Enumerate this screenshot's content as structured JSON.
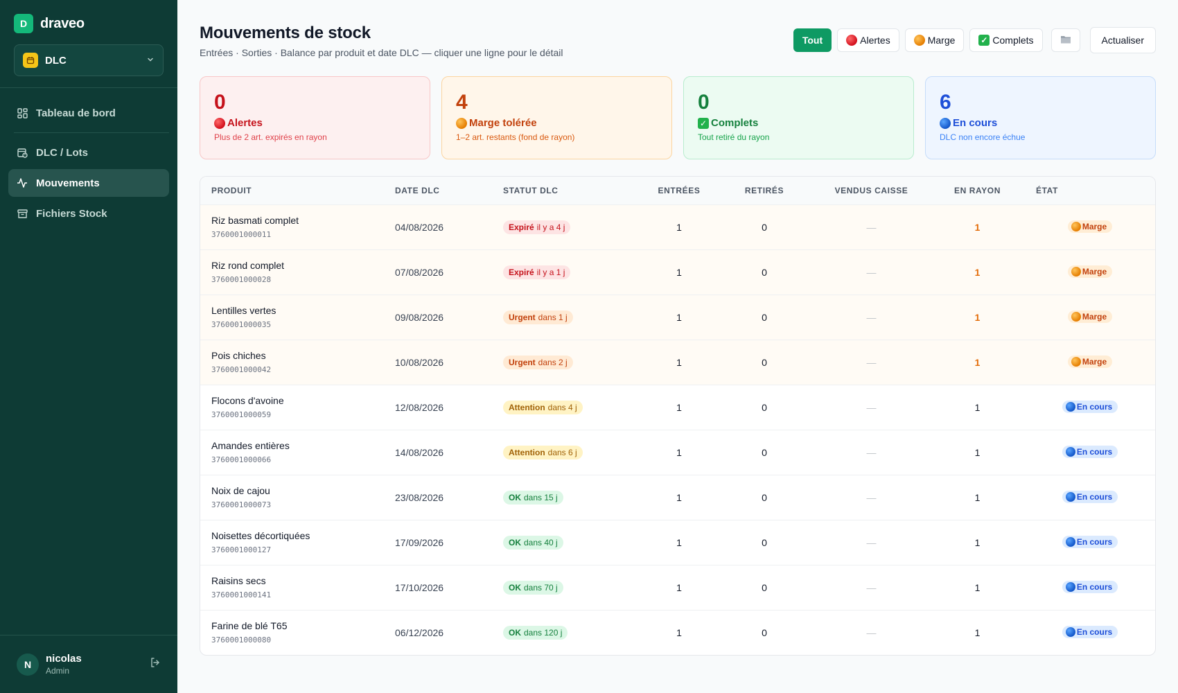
{
  "brand": {
    "logo_letter": "D",
    "name": "draveo"
  },
  "module": {
    "label": "DLC",
    "icon": "calendar-icon"
  },
  "nav": [
    {
      "label": "Tableau de bord",
      "icon": "dashboard-icon",
      "active": false
    },
    {
      "label": "DLC / Lots",
      "icon": "calendar-clock-icon",
      "active": false
    },
    {
      "label": "Mouvements",
      "icon": "activity-icon",
      "active": true
    },
    {
      "label": "Fichiers Stock",
      "icon": "archive-icon",
      "active": false
    }
  ],
  "user": {
    "initial": "N",
    "name": "nicolas",
    "role": "Admin"
  },
  "page": {
    "title": "Mouvements de stock",
    "subtitle": "Entrées · Sorties · Balance par produit et date DLC — cliquer une ligne pour le détail"
  },
  "filters": {
    "all": "Tout",
    "alerts": "Alertes",
    "margin": "Marge",
    "complete": "Complets",
    "refresh": "Actualiser"
  },
  "cards": {
    "alerts": {
      "count": "0",
      "label": "Alertes",
      "desc": "Plus de 2 art. expirés en rayon"
    },
    "margin": {
      "count": "4",
      "label": "Marge tolérée",
      "desc": "1–2 art. restants (fond de rayon)"
    },
    "complete": {
      "count": "0",
      "label": "Complets",
      "desc": "Tout retiré du rayon"
    },
    "ongoing": {
      "count": "6",
      "label": "En cours",
      "desc": "DLC non encore échue"
    }
  },
  "table": {
    "headers": [
      "Produit",
      "Date DLC",
      "Statut DLC",
      "Entrées",
      "Retirés",
      "Vendus caisse",
      "En rayon",
      "État"
    ],
    "rows": [
      {
        "name": "Riz basmati complet",
        "code": "3760001000011",
        "date": "04/08/2026",
        "status": "Expiré",
        "status_detail": "il y a 4 j",
        "status_kind": "exp",
        "in": "1",
        "out": "0",
        "sold": "—",
        "shelf": "1",
        "state": "Marge",
        "state_kind": "marge"
      },
      {
        "name": "Riz rond complet",
        "code": "3760001000028",
        "date": "07/08/2026",
        "status": "Expiré",
        "status_detail": "il y a 1 j",
        "status_kind": "exp",
        "in": "1",
        "out": "0",
        "sold": "—",
        "shelf": "1",
        "state": "Marge",
        "state_kind": "marge"
      },
      {
        "name": "Lentilles vertes",
        "code": "3760001000035",
        "date": "09/08/2026",
        "status": "Urgent",
        "status_detail": "dans 1 j",
        "status_kind": "urg",
        "in": "1",
        "out": "0",
        "sold": "—",
        "shelf": "1",
        "state": "Marge",
        "state_kind": "marge"
      },
      {
        "name": "Pois chiches",
        "code": "3760001000042",
        "date": "10/08/2026",
        "status": "Urgent",
        "status_detail": "dans 2 j",
        "status_kind": "urg",
        "in": "1",
        "out": "0",
        "sold": "—",
        "shelf": "1",
        "state": "Marge",
        "state_kind": "marge"
      },
      {
        "name": "Flocons d'avoine",
        "code": "3760001000059",
        "date": "12/08/2026",
        "status": "Attention",
        "status_detail": "dans 4 j",
        "status_kind": "att",
        "in": "1",
        "out": "0",
        "sold": "—",
        "shelf": "1",
        "state": "En cours",
        "state_kind": "cours"
      },
      {
        "name": "Amandes entières",
        "code": "3760001000066",
        "date": "14/08/2026",
        "status": "Attention",
        "status_detail": "dans 6 j",
        "status_kind": "att",
        "in": "1",
        "out": "0",
        "sold": "—",
        "shelf": "1",
        "state": "En cours",
        "state_kind": "cours"
      },
      {
        "name": "Noix de cajou",
        "code": "3760001000073",
        "date": "23/08/2026",
        "status": "OK",
        "status_detail": "dans 15 j",
        "status_kind": "ok",
        "in": "1",
        "out": "0",
        "sold": "—",
        "shelf": "1",
        "state": "En cours",
        "state_kind": "cours"
      },
      {
        "name": "Noisettes décortiquées",
        "code": "3760001000127",
        "date": "17/09/2026",
        "status": "OK",
        "status_detail": "dans 40 j",
        "status_kind": "ok",
        "in": "1",
        "out": "0",
        "sold": "—",
        "shelf": "1",
        "state": "En cours",
        "state_kind": "cours"
      },
      {
        "name": "Raisins secs",
        "code": "3760001000141",
        "date": "17/10/2026",
        "status": "OK",
        "status_detail": "dans 70 j",
        "status_kind": "ok",
        "in": "1",
        "out": "0",
        "sold": "—",
        "shelf": "1",
        "state": "En cours",
        "state_kind": "cours"
      },
      {
        "name": "Farine de blé T65",
        "code": "3760001000080",
        "date": "06/12/2026",
        "status": "OK",
        "status_detail": "dans 120 j",
        "status_kind": "ok",
        "in": "1",
        "out": "0",
        "sold": "—",
        "shelf": "1",
        "state": "En cours",
        "state_kind": "cours"
      }
    ]
  },
  "colors": {
    "sidebar": "#0e3b35",
    "accent": "#0e9a63",
    "alert": "#c5121b",
    "margin": "#c2410c",
    "complete": "#15803d",
    "ongoing": "#1d4ed8"
  }
}
